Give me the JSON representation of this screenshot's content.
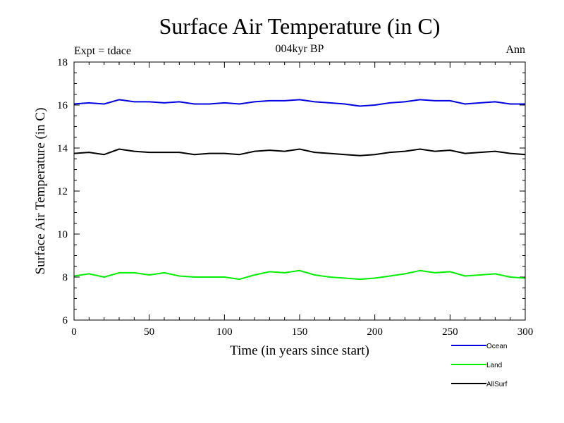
{
  "chart_data": {
    "type": "line",
    "title": "Surface Air Temperature (in C)",
    "subtitle": "004kyr BP",
    "left_label": "Expt = tdace",
    "right_label": "Ann",
    "xlabel": "Time (in years since start)",
    "ylabel": "Surface Air Temperature (in C)",
    "xlim": [
      0,
      300
    ],
    "ylim": [
      6,
      18
    ],
    "xticks": [
      0,
      50,
      100,
      150,
      200,
      250,
      300
    ],
    "yticks": [
      6,
      8,
      10,
      12,
      14,
      16,
      18
    ],
    "series": [
      {
        "name": "Ocean",
        "color": "#0000e0",
        "x": [
          0,
          10,
          20,
          30,
          40,
          50,
          60,
          70,
          80,
          90,
          100,
          110,
          120,
          130,
          140,
          150,
          160,
          170,
          180,
          190,
          200,
          210,
          220,
          230,
          240,
          250,
          260,
          270,
          280,
          290,
          300
        ],
        "values": [
          16.05,
          16.1,
          16.05,
          16.25,
          16.15,
          16.15,
          16.1,
          16.15,
          16.05,
          16.05,
          16.1,
          16.05,
          16.15,
          16.2,
          16.2,
          16.25,
          16.15,
          16.1,
          16.05,
          15.95,
          16.0,
          16.1,
          16.15,
          16.25,
          16.2,
          16.2,
          16.05,
          16.1,
          16.15,
          16.05,
          16.05
        ]
      },
      {
        "name": "Land",
        "color": "#00ee00",
        "x": [
          0,
          10,
          20,
          30,
          40,
          50,
          60,
          70,
          80,
          90,
          100,
          110,
          120,
          130,
          140,
          150,
          160,
          170,
          180,
          190,
          200,
          210,
          220,
          230,
          240,
          250,
          260,
          270,
          280,
          290,
          300
        ],
        "values": [
          8.05,
          8.15,
          8.0,
          8.2,
          8.2,
          8.1,
          8.2,
          8.05,
          8.0,
          8.0,
          8.0,
          7.9,
          8.1,
          8.25,
          8.2,
          8.3,
          8.1,
          8.0,
          7.95,
          7.9,
          7.95,
          8.05,
          8.15,
          8.3,
          8.2,
          8.25,
          8.05,
          8.1,
          8.15,
          8.0,
          7.95
        ]
      },
      {
        "name": "AllSurf",
        "color": "#000000",
        "x": [
          0,
          10,
          20,
          30,
          40,
          50,
          60,
          70,
          80,
          90,
          100,
          110,
          120,
          130,
          140,
          150,
          160,
          170,
          180,
          190,
          200,
          210,
          220,
          230,
          240,
          250,
          260,
          270,
          280,
          290,
          300
        ],
        "values": [
          13.75,
          13.8,
          13.7,
          13.95,
          13.85,
          13.8,
          13.8,
          13.8,
          13.7,
          13.75,
          13.75,
          13.7,
          13.85,
          13.9,
          13.85,
          13.95,
          13.8,
          13.75,
          13.7,
          13.65,
          13.7,
          13.8,
          13.85,
          13.95,
          13.85,
          13.9,
          13.75,
          13.8,
          13.85,
          13.75,
          13.7
        ]
      }
    ],
    "legend": {
      "position": "bottom-right",
      "entries": [
        "Ocean",
        "Land",
        "AllSurf"
      ]
    }
  }
}
